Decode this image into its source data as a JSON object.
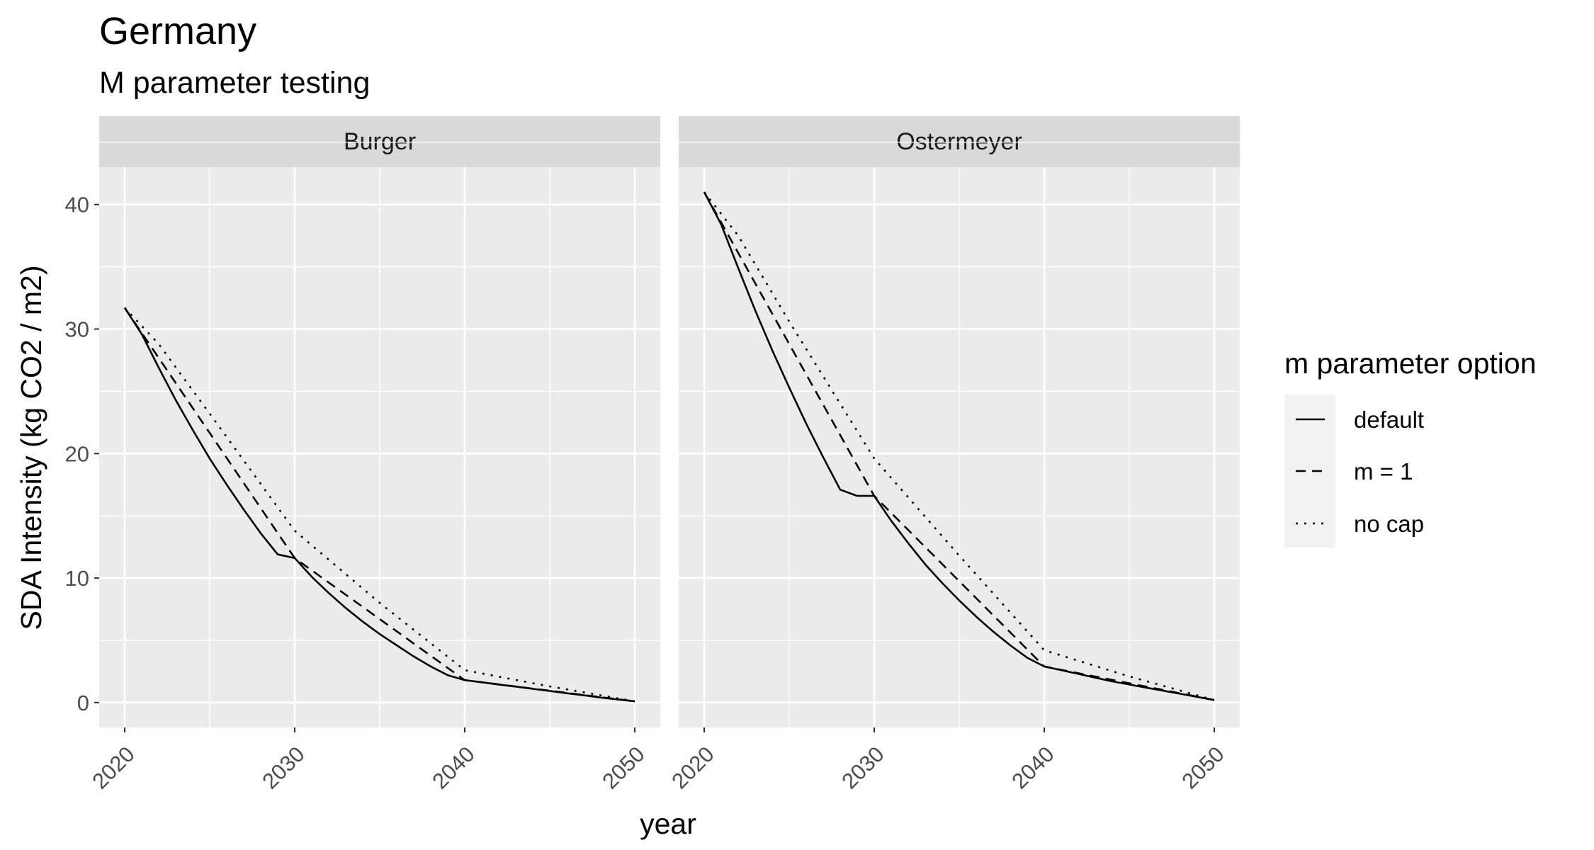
{
  "chart_data": {
    "type": "line",
    "title": "Germany",
    "subtitle": "M parameter testing",
    "xlabel": "year",
    "ylabel": "SDA Intensity (kg CO2 / m2)",
    "xlim": [
      2018.5,
      2051.5
    ],
    "ylim": [
      -2,
      43
    ],
    "x_ticks": [
      2020,
      2030,
      2040,
      2050
    ],
    "y_ticks": [
      0,
      10,
      20,
      30,
      40
    ],
    "grid": true,
    "legend": {
      "title": "m parameter option",
      "position": "right",
      "entries": [
        {
          "label": "default",
          "linetype": "solid"
        },
        {
          "label": "m = 1",
          "linetype": "dashed"
        },
        {
          "label": "no cap",
          "linetype": "dotted"
        }
      ]
    },
    "facets": [
      {
        "name": "Burger",
        "series": [
          {
            "name": "default",
            "linetype": "solid",
            "x": [
              2020,
              2021,
              2022,
              2023,
              2024,
              2025,
              2026,
              2027,
              2028,
              2029,
              2030,
              2031,
              2032,
              2033,
              2034,
              2035,
              2036,
              2037,
              2038,
              2039,
              2040,
              2041,
              2042,
              2043,
              2044,
              2045,
              2046,
              2047,
              2048,
              2049,
              2050
            ],
            "y": [
              31.7,
              29.6,
              26.9,
              24.3,
              21.9,
              19.6,
              17.5,
              15.5,
              13.6,
              11.9,
              11.6,
              10.1,
              8.8,
              7.6,
              6.5,
              5.5,
              4.6,
              3.7,
              2.9,
              2.2,
              1.8,
              1.63,
              1.45,
              1.28,
              1.1,
              0.93,
              0.75,
              0.58,
              0.4,
              0.25,
              0.1
            ]
          },
          {
            "name": "m = 1",
            "linetype": "dashed",
            "x": [
              2020,
              2030,
              2040,
              2050
            ],
            "y": [
              31.7,
              11.6,
              1.8,
              0.1
            ]
          },
          {
            "name": "no cap",
            "linetype": "dotted",
            "x": [
              2020,
              2022,
              2025,
              2030,
              2035,
              2040,
              2045,
              2050
            ],
            "y": [
              31.7,
              28.8,
              23.2,
              13.8,
              8.0,
              2.6,
              1.3,
              0.1
            ]
          }
        ]
      },
      {
        "name": "Ostermeyer",
        "series": [
          {
            "name": "default",
            "linetype": "solid",
            "x": [
              2020,
              2021,
              2022,
              2023,
              2024,
              2025,
              2026,
              2027,
              2028,
              2029,
              2030,
              2031,
              2032,
              2033,
              2034,
              2035,
              2036,
              2037,
              2038,
              2039,
              2040,
              2041,
              2042,
              2043,
              2044,
              2045,
              2046,
              2047,
              2048,
              2049,
              2050
            ],
            "y": [
              41.0,
              38.4,
              34.9,
              31.5,
              28.3,
              25.3,
              22.4,
              19.7,
              17.1,
              16.6,
              16.6,
              14.6,
              12.8,
              11.1,
              9.6,
              8.2,
              6.9,
              5.7,
              4.6,
              3.6,
              2.9,
              2.6,
              2.3,
              2.0,
              1.7,
              1.45,
              1.2,
              0.95,
              0.7,
              0.45,
              0.2
            ]
          },
          {
            "name": "m = 1",
            "linetype": "dashed",
            "x": [
              2020,
              2030,
              2040,
              2050
            ],
            "y": [
              41.0,
              16.6,
              2.9,
              0.2
            ]
          },
          {
            "name": "no cap",
            "linetype": "dotted",
            "x": [
              2020,
              2022,
              2025,
              2030,
              2035,
              2040,
              2045,
              2050
            ],
            "y": [
              41.0,
              37.5,
              30.6,
              19.6,
              11.8,
              4.2,
              2.1,
              0.2
            ]
          }
        ]
      }
    ]
  }
}
